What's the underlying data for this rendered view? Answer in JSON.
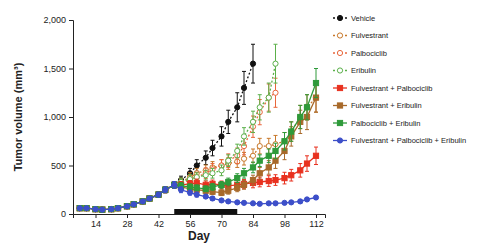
{
  "chart_data": {
    "type": "line",
    "x_label": "Day",
    "y_label": "Tumor volume (mm³)",
    "x": [
      7,
      10,
      14,
      17,
      21,
      24,
      28,
      31,
      35,
      38,
      42,
      45,
      49,
      52,
      56,
      59,
      63,
      66,
      70,
      73,
      77,
      80,
      84,
      87,
      91,
      94,
      98,
      101,
      105,
      108,
      112
    ],
    "xlim": [
      4,
      116
    ],
    "xticks": [
      14,
      28,
      42,
      56,
      70,
      84,
      98,
      112
    ],
    "ylim": [
      0,
      2000
    ],
    "yticks": [
      0,
      500,
      {
        "value": 1000,
        "label": "1,000"
      },
      {
        "value": 1500,
        "label": "1,500"
      },
      {
        "value": 2000,
        "label": "2,000"
      }
    ],
    "legend": "right",
    "treatment_bar": [
      49,
      77
    ],
    "series": [
      {
        "name": "Vehicle",
        "color": "#111111",
        "marker": "circle",
        "line_style": "dotted",
        "values": [
          60,
          60,
          50,
          45,
          50,
          60,
          80,
          100,
          130,
          160,
          200,
          250,
          300,
          350,
          420,
          500,
          580,
          680,
          800,
          950,
          1100,
          1300,
          1550,
          null,
          null,
          null,
          null,
          null,
          null,
          null,
          null
        ],
        "errors": [
          8,
          8,
          6,
          6,
          6,
          8,
          10,
          12,
          15,
          20,
          25,
          30,
          35,
          40,
          50,
          60,
          70,
          80,
          100,
          120,
          150,
          170,
          200,
          null,
          null,
          null,
          null,
          null,
          null,
          null,
          null
        ]
      },
      {
        "name": "Fulvestrant",
        "color": "#c8782a",
        "marker": "open-circle",
        "line_style": "dotted",
        "values": [
          60,
          60,
          50,
          45,
          50,
          60,
          80,
          100,
          130,
          160,
          200,
          250,
          300,
          330,
          380,
          420,
          450,
          480,
          500,
          520,
          540,
          570,
          600,
          700,
          700,
          720,
          750,
          850,
          1000,
          1100,
          1200
        ],
        "errors": [
          8,
          8,
          6,
          6,
          6,
          8,
          10,
          12,
          15,
          20,
          25,
          30,
          35,
          40,
          45,
          50,
          55,
          60,
          60,
          60,
          60,
          65,
          70,
          80,
          80,
          90,
          90,
          100,
          120,
          130,
          150
        ]
      },
      {
        "name": "Palbociclib",
        "color": "#e8673c",
        "marker": "open-circle",
        "line_style": "dotted",
        "values": [
          60,
          60,
          50,
          45,
          50,
          60,
          80,
          100,
          130,
          160,
          200,
          250,
          300,
          320,
          350,
          380,
          420,
          460,
          500,
          550,
          600,
          700,
          900,
          1050,
          1200,
          1250,
          null,
          null,
          null,
          null,
          null
        ],
        "errors": [
          8,
          8,
          6,
          6,
          6,
          8,
          10,
          12,
          15,
          20,
          25,
          30,
          35,
          40,
          45,
          50,
          55,
          60,
          60,
          70,
          80,
          90,
          110,
          130,
          140,
          150,
          null,
          null,
          null,
          null,
          null
        ]
      },
      {
        "name": "Eribulin",
        "color": "#5bb04a",
        "marker": "open-circle",
        "line_style": "dotted",
        "values": [
          60,
          60,
          50,
          45,
          50,
          60,
          80,
          100,
          130,
          160,
          200,
          250,
          300,
          330,
          360,
          380,
          400,
          420,
          450,
          550,
          650,
          800,
          950,
          1100,
          1200,
          1550,
          null,
          null,
          null,
          null,
          null
        ],
        "errors": [
          8,
          8,
          6,
          6,
          6,
          8,
          10,
          12,
          15,
          20,
          25,
          30,
          35,
          40,
          45,
          45,
          50,
          50,
          55,
          60,
          70,
          90,
          110,
          130,
          150,
          200,
          null,
          null,
          null,
          null,
          null
        ]
      },
      {
        "name": "Fulvestrant + Palbociclib",
        "color": "#e8311f",
        "marker": "square",
        "line_style": "solid",
        "values": [
          60,
          60,
          50,
          45,
          50,
          60,
          80,
          100,
          130,
          160,
          200,
          250,
          300,
          300,
          310,
          320,
          300,
          310,
          300,
          290,
          300,
          310,
          320,
          330,
          340,
          350,
          370,
          400,
          450,
          520,
          600
        ],
        "errors": [
          8,
          8,
          6,
          6,
          6,
          8,
          10,
          12,
          15,
          20,
          25,
          30,
          35,
          35,
          35,
          40,
          40,
          40,
          40,
          40,
          45,
          45,
          50,
          50,
          55,
          55,
          60,
          60,
          70,
          80,
          90
        ]
      },
      {
        "name": "Fulvestrant + Eribulin",
        "color": "#a8692a",
        "marker": "square",
        "line_style": "solid",
        "values": [
          60,
          60,
          50,
          45,
          50,
          60,
          80,
          100,
          130,
          160,
          200,
          250,
          300,
          280,
          260,
          250,
          240,
          230,
          220,
          240,
          270,
          300,
          350,
          420,
          480,
          550,
          650,
          800,
          950,
          1000,
          1200
        ],
        "errors": [
          8,
          8,
          6,
          6,
          6,
          8,
          10,
          12,
          15,
          20,
          25,
          30,
          35,
          35,
          30,
          30,
          30,
          30,
          30,
          35,
          40,
          45,
          50,
          60,
          70,
          80,
          90,
          100,
          120,
          130,
          150
        ]
      },
      {
        "name": "Palbociclib + Eribulin",
        "color": "#2e9a3a",
        "marker": "square",
        "line_style": "solid",
        "values": [
          60,
          60,
          50,
          45,
          50,
          60,
          80,
          100,
          130,
          160,
          200,
          250,
          300,
          290,
          280,
          270,
          260,
          280,
          300,
          330,
          370,
          420,
          480,
          550,
          600,
          650,
          750,
          850,
          1000,
          1100,
          1350
        ],
        "errors": [
          8,
          8,
          6,
          6,
          6,
          8,
          10,
          12,
          15,
          20,
          25,
          30,
          35,
          35,
          30,
          30,
          30,
          35,
          35,
          40,
          45,
          50,
          55,
          60,
          70,
          80,
          90,
          100,
          120,
          130,
          150
        ]
      },
      {
        "name": "Fulvestrant + Palbociclib + Eribulin",
        "color": "#3d4fc9",
        "marker": "circle",
        "line_style": "solid",
        "values": [
          60,
          60,
          50,
          45,
          50,
          60,
          80,
          100,
          130,
          160,
          200,
          250,
          300,
          250,
          220,
          200,
          180,
          160,
          140,
          130,
          120,
          115,
          110,
          105,
          110,
          110,
          115,
          120,
          130,
          150,
          170
        ],
        "errors": [
          8,
          8,
          6,
          6,
          6,
          8,
          10,
          12,
          15,
          20,
          25,
          30,
          35,
          30,
          25,
          25,
          20,
          20,
          15,
          15,
          15,
          12,
          12,
          12,
          12,
          12,
          12,
          15,
          15,
          18,
          20
        ]
      }
    ]
  }
}
